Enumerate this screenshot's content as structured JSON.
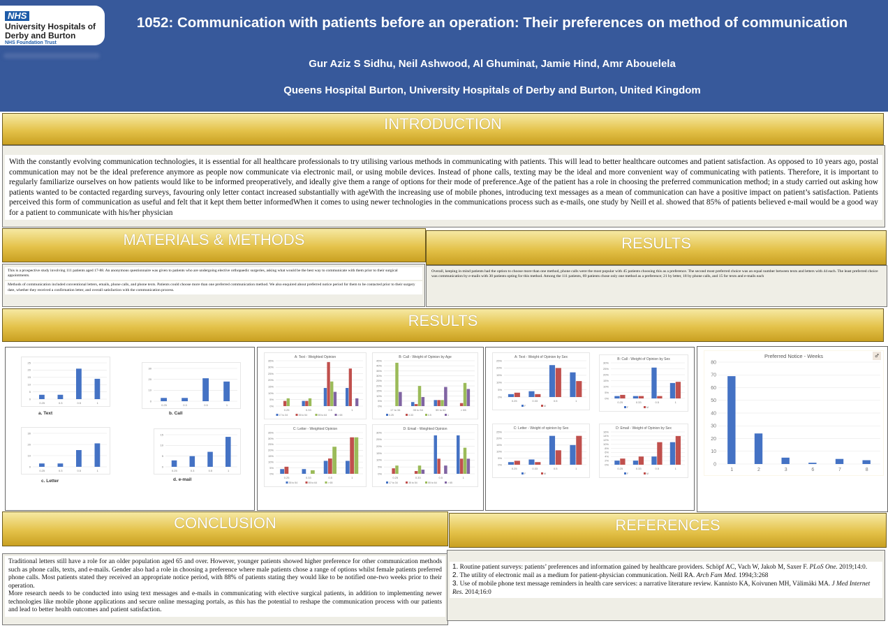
{
  "logo": {
    "badge": "NHS",
    "org_line1": "University Hospitals of",
    "org_line2": "Derby and Burton",
    "org_line3": "NHS Foundation Trust"
  },
  "header": {
    "title": "1052: Communication with patients before an operation: Their preferences on method of communication",
    "authors": "Gur Aziz S Sidhu,  Neil Ashwood, Al Ghuminat, Jamie Hind, Amr Abouelela",
    "affiliation": "Queens Hospital Burton, University Hospitals of Derby and Burton, United Kingdom"
  },
  "introduction": {
    "heading": "INTRODUCTION",
    "text": "With the constantly evolving communication technologies, it is essential for all healthcare professionals to try utilising various methods in communicating with patients. This will lead to better healthcare outcomes and patient satisfaction. As opposed to 10 years ago, postal communication may not be the ideal preference anymore as people now communicate via electronic mail, or using mobile devices. Instead of phone calls, texting may be the ideal and more convenient way of communicating with patients. Therefore, it is important to regularly familiarize ourselves on how patients would like to be informed preoperatively, and ideally give them a range of options for their mode of preference.Age of the patient has a role in choosing the preferred communication method; in a study carried out asking how patients wanted to be contacted regarding surveys, favouring only letter contact increased substantially with ageWith the increasing use of mobile phones, introducing text messages as a mean of communication can have a positive impact on patient’s satisfaction. Patients perceived this form of communication as useful and felt that it kept them better informedWhen it comes to using newer technologies in the communications process such as e-mails, one study by Neill et al. showed that 85% of patients believed e-mail would be a good way for a patient to communicate with his/her physician"
  },
  "methods": {
    "heading": "MATERIALS & METHODS",
    "para1": "This is a prospective study involving 111 patients aged 17-88. An anonymous questionnaire was given to patients who are undergoing elective orthopaedic surgeries, asking what would be the best way to communicate with them prior to their surgical appointments.",
    "para2": "Methods of communication included conventional letters, emails, phone calls, and phone texts. Patients could choose more than one preferred communication method. We also enquired about preferred notice period for them to be contacted prior to their surgery date, whether they received a confirmation letter, and overall satisfaction with the communication process."
  },
  "results_top": {
    "heading": "RESULTS",
    "text": "Overall, keeping in mind patients had the option to choose more than one method, phone calls were the most popular with 45 patients choosing this as a preference. The second most preferred choice was an equal number between texts and letters with 44 each. The least preferred choice was communication by e-mails with 30 patients opting for this method.  Among the 111 patients, 69 patients chose only one method as a preference; 21 by letter, 18 by phone calls, and 15 for texts and e-mails each"
  },
  "results_bar": {
    "heading": "RESULTS"
  },
  "conclusion": {
    "heading": "CONCLUSION",
    "para1": "Traditional letters still have a role for an older population aged 65 and over. However, younger patients showed higher preference for other communication methods such as phone calls, texts, and e-mails. Gender also had a role in choosing a preference where male patients chose a range of options whilst female patients preferred phone calls. Most patients stated they received an appropriate notice period, with 88% of patients stating they would like to be notified one-two weeks prior to their operation.",
    "para2": "More research needs to be conducted into using text messages and e-mails in communicating with elective surgical patients, in addition to implementing newer technologies like mobile phone applications and secure online messaging portals, as this has the potential to reshape the communication process with our patients and lead to better health outcomes and patient satisfaction."
  },
  "references": {
    "heading": "REFERENCES",
    "items": [
      {
        "num": "1.",
        "text": " Routine patient surveys: patients’ preferences and information gained by healthcare providers. Schöpf AC, Vach W, Jakob M, Saxer F. ",
        "journal": "PLoS One.",
        "rest": " 2019;14:0."
      },
      {
        "num": "2.",
        "text": " The utility of electronic mail as a medium for patient-physician communication. Neill RA. ",
        "journal": "Arch Fam Med.",
        "rest": " 1994;3:268"
      },
      {
        "num": "3.",
        "text": " Use of mobile phone text message reminders in health care services: a narrative literature review. Kannisto KA, Koivunen MH, Välimäki MA. ",
        "journal": "J Med Internet Res.",
        "rest": " 2014;16:0"
      }
    ]
  },
  "colors": {
    "header": "#37599b",
    "blue": "#4472c4",
    "red": "#c0504d",
    "green": "#9bbb59",
    "purple": "#8064a2"
  },
  "chart_data": [
    {
      "type": "bar",
      "caption": "a. Text",
      "categories": [
        "0.25",
        "0.3",
        "0.5",
        "1"
      ],
      "series": [
        {
          "name": "Text",
          "values": [
            3,
            3,
            21,
            14
          ]
        }
      ],
      "ylim": [
        0,
        25
      ],
      "ystep": 5,
      "unit": ""
    },
    {
      "type": "bar",
      "caption": "b. Call",
      "categories": [
        "0.25",
        "0.3",
        "0.5",
        "1"
      ],
      "series": [
        {
          "name": "Call",
          "values": [
            3,
            3,
            21,
            18
          ]
        }
      ],
      "ylim": [
        0,
        30
      ],
      "ystep": 10,
      "unit": ""
    },
    {
      "type": "bar",
      "caption": "c. Letter",
      "categories": [
        "0.25",
        "0.3",
        "0.5",
        "1"
      ],
      "series": [
        {
          "name": "Letter",
          "values": [
            3,
            3,
            15,
            21
          ]
        }
      ],
      "ylim": [
        0,
        30
      ],
      "ystep": 10,
      "unit": ""
    },
    {
      "type": "bar",
      "caption": "d. e-mail",
      "categories": [
        "0.25",
        "0.3",
        "0.5",
        "1"
      ],
      "series": [
        {
          "name": "e-mail",
          "values": [
            3,
            5,
            7,
            14
          ]
        }
      ],
      "ylim": [
        0,
        15
      ],
      "ystep": 5,
      "unit": ""
    },
    {
      "type": "bar",
      "title": "A: Text - Weighted Opinion",
      "categories": [
        "0.25",
        "0.33",
        "0.5",
        "1"
      ],
      "series": [
        {
          "name": "17 to 34",
          "values": [
            0,
            4,
            14,
            14
          ]
        },
        {
          "name": "35 to 54",
          "values": [
            4,
            4,
            34,
            29
          ]
        },
        {
          "name": "55 to 64",
          "values": [
            6,
            6,
            19,
            0
          ]
        },
        {
          "name": "> 65",
          "values": [
            0,
            0,
            11,
            6
          ]
        }
      ],
      "ylim": [
        0,
        35
      ],
      "ystep": 5,
      "unit": "%"
    },
    {
      "type": "bar",
      "title": "B: Call - Weight of Opinion by Age",
      "categories": [
        "17 to 34",
        "35 to 54",
        "55 to 64",
        "> 65"
      ],
      "series": [
        {
          "name": "0.25",
          "values": [
            0,
            4,
            6,
            0
          ]
        },
        {
          "name": "0.33",
          "values": [
            0,
            2,
            6,
            3
          ]
        },
        {
          "name": "0.5",
          "values": [
            43,
            20,
            6,
            23
          ]
        },
        {
          "name": "1",
          "values": [
            14,
            9,
            19,
            17
          ]
        }
      ],
      "ylim": [
        0,
        45
      ],
      "ystep": 5,
      "unit": "%"
    },
    {
      "type": "bar",
      "title": "C: Letter - Weighted Opinion",
      "categories": [
        "0.25",
        "0.33",
        "0.5",
        "1"
      ],
      "series": [
        {
          "name": "35 to 54",
          "values": [
            4,
            4,
            11,
            11
          ]
        },
        {
          "name": "55 to 64",
          "values": [
            6,
            0,
            13,
            31
          ]
        },
        {
          "name": "> 65",
          "values": [
            0,
            3,
            23,
            31
          ]
        }
      ],
      "ylim": [
        0,
        35
      ],
      "ystep": 5,
      "unit": "%"
    },
    {
      "type": "bar",
      "title": "D: Email - Weighted Opinion",
      "categories": [
        "0.25",
        "0.33",
        "0.5",
        "1"
      ],
      "series": [
        {
          "name": "17 to 34",
          "values": [
            0,
            0,
            28,
            28
          ]
        },
        {
          "name": "35 to 54",
          "values": [
            4,
            2,
            11,
            11
          ]
        },
        {
          "name": "55 to 64",
          "values": [
            6,
            6,
            0,
            19
          ]
        },
        {
          "name": "> 65",
          "values": [
            0,
            3,
            6,
            11
          ]
        }
      ],
      "ylim": [
        0,
        30
      ],
      "ystep": 5,
      "unit": "%"
    },
    {
      "type": "bar",
      "title": "A: Text - Weight of Opinion by Sex",
      "categories": [
        "0.25",
        "0.33",
        "0.5",
        "1"
      ],
      "series": [
        {
          "name": "F",
          "values": [
            2,
            4,
            22,
            17
          ]
        },
        {
          "name": "M",
          "values": [
            3,
            2,
            20,
            11
          ]
        }
      ],
      "ylim": [
        0,
        25
      ],
      "ystep": 5,
      "unit": "%"
    },
    {
      "type": "bar",
      "title": "B: Call - Weight of Opinion by Sex",
      "categories": [
        "0.25",
        "0.33",
        "0.5",
        "1"
      ],
      "series": [
        {
          "name": "F",
          "values": [
            2,
            2,
            26,
            13
          ]
        },
        {
          "name": "M",
          "values": [
            3,
            2,
            2,
            14
          ]
        }
      ],
      "ylim": [
        0,
        30
      ],
      "ystep": 5,
      "unit": "%"
    },
    {
      "type": "bar",
      "title": "C: Letter - Weight of opinion by Sex",
      "categories": [
        "0.25",
        "0.33",
        "0.5",
        "1"
      ],
      "series": [
        {
          "name": "F",
          "values": [
            2,
            4,
            22,
            15
          ]
        },
        {
          "name": "M",
          "values": [
            3,
            2,
            11,
            22
          ]
        }
      ],
      "ylim": [
        0,
        25
      ],
      "ystep": 5,
      "unit": "%"
    },
    {
      "type": "bar",
      "title": "D: Email - Weight of Opinion by Sex",
      "categories": [
        "0.25",
        "0.33",
        "0.5",
        "1"
      ],
      "series": [
        {
          "name": "F",
          "values": [
            2,
            2,
            4,
            11
          ]
        },
        {
          "name": "M",
          "values": [
            3,
            4,
            11,
            14
          ]
        }
      ],
      "ylim": [
        0,
        16
      ],
      "ystep": 2,
      "unit": "%"
    },
    {
      "type": "bar",
      "title": "Preferred Notice - Weeks",
      "categories": [
        "1",
        "2",
        "3",
        "6",
        "7",
        "8"
      ],
      "series": [
        {
          "name": "Weeks",
          "values": [
            69,
            24,
            5,
            1,
            4,
            3
          ]
        }
      ],
      "ylim": [
        0,
        80
      ],
      "ystep": 10,
      "unit": ""
    }
  ]
}
